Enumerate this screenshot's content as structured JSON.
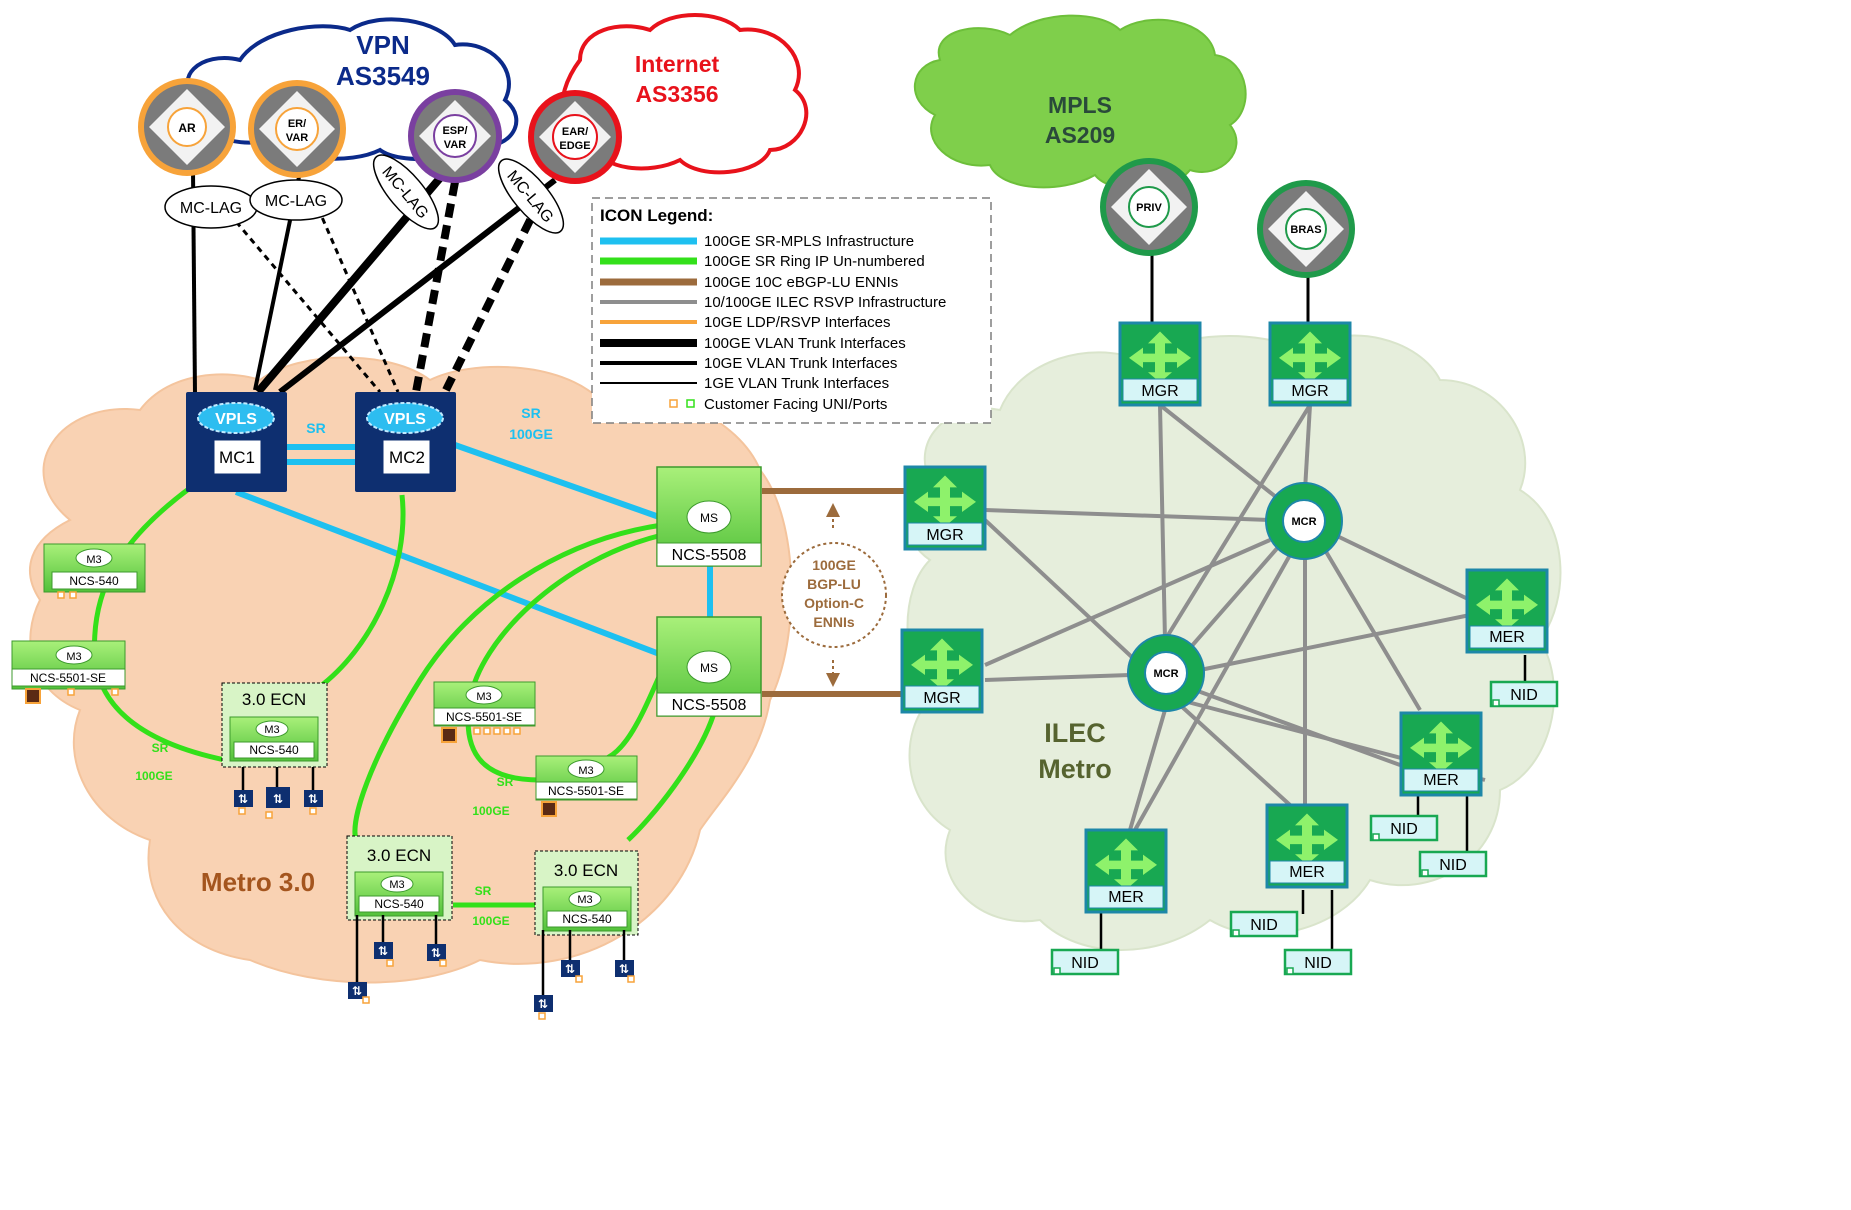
{
  "clouds": {
    "vpn": {
      "line1": "VPN",
      "line2": "AS3549"
    },
    "internet": {
      "line1": "Internet",
      "line2": "AS3356"
    },
    "mpls": {
      "line1": "MPLS",
      "line2": "AS209"
    },
    "metro": "Metro 3.0",
    "ilec": {
      "line1": "ILEC",
      "line2": "Metro"
    }
  },
  "routers": {
    "ar": "AR",
    "er_var": {
      "line1": "ER/",
      "line2": "VAR"
    },
    "esp_var": {
      "line1": "ESP/",
      "line2": "VAR"
    },
    "ear_edge": {
      "line1": "EAR/",
      "line2": "EDGE"
    },
    "priv": "PRIV",
    "bras": "BRAS"
  },
  "mc_lag": "MC-LAG",
  "vpls": "VPLS",
  "mc1": "MC1",
  "mc2": "MC2",
  "sr": "SR",
  "sr_100ge": {
    "line1": "SR",
    "line2": "100GE"
  },
  "ms": "MS",
  "ncs5508": "NCS-5508",
  "m3": "M3",
  "ncs540": "NCS-540",
  "ncs5501se": "NCS-5501-SE",
  "ecn_title": "3.0 ECN",
  "enni": {
    "line1": "100GE",
    "line2": "BGP-LU",
    "line3": "Option-C",
    "line4": "ENNIs"
  },
  "mgr": "MGR",
  "mcr": "MCR",
  "mer": "MER",
  "nid": "NID",
  "legend": {
    "title": "ICON Legend:",
    "items": [
      {
        "label": "100GE SR-MPLS Infrastructure",
        "color": "#1ec0f0"
      },
      {
        "label": "100GE SR Ring IP Un-numbered",
        "color": "#33e01a"
      },
      {
        "label": "100GE 10C eBGP-LU ENNIs",
        "color": "#9c6b3c"
      },
      {
        "label": "10/100GE ILEC RSVP Infrastructure",
        "color": "#8e8e8e"
      },
      {
        "label": "10GE LDP/RSVP Interfaces",
        "color": "#f7a33a"
      },
      {
        "label": "100GE VLAN Trunk Interfaces",
        "color": "#000000"
      },
      {
        "label": "10GE VLAN Trunk Interfaces",
        "color": "#000000"
      },
      {
        "label": "1GE  VLAN Trunk Interfaces",
        "color": "#000000"
      },
      {
        "label": "Customer Facing UNI/Ports",
        "color": "#f7a33a"
      }
    ]
  },
  "colors": {
    "sr_mpls": "#1ec0f0",
    "ring": "#33e01a",
    "enni": "#9c6b3c",
    "ilec": "#8e8e8e",
    "metro_cloud": "#f9d2b3",
    "ilec_cloud": "#e6eedc",
    "mpls_cloud": "#7fcf4b",
    "vpn_outline": "#0b2a8a",
    "internet_outline": "#e8121b",
    "mc_box": "#0e2f70",
    "orange_ring": "#f7a33a",
    "purple_ring": "#7a3fa0",
    "red_ring": "#e8121b",
    "green_ring": "#1f9a4a",
    "metro_text": "#a4551e",
    "ilec_text": "#56632f"
  }
}
